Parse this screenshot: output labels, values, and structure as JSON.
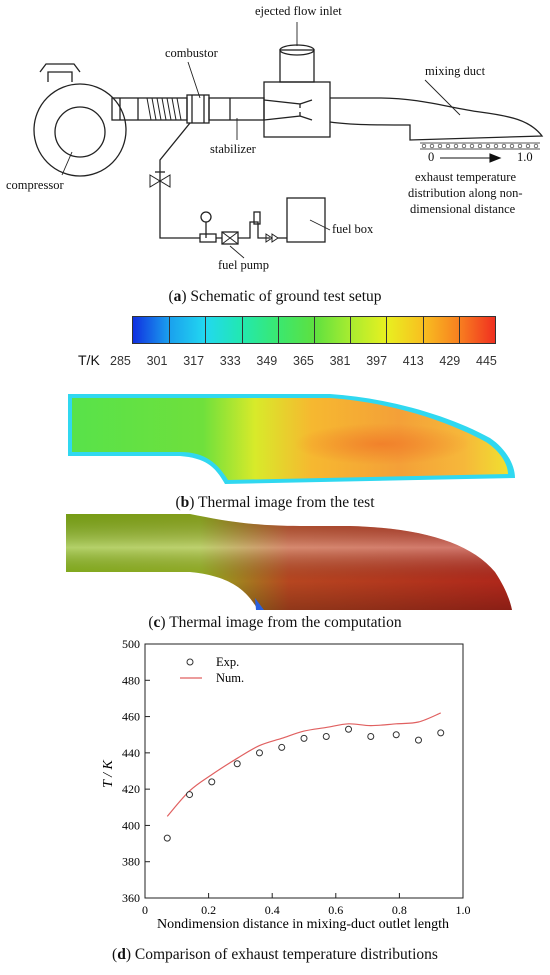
{
  "panel_a": {
    "labels": {
      "ejected_flow_inlet": "ejected flow inlet",
      "combustor": "combustor",
      "mixing_duct": "mixing duct",
      "compressor": "compressor",
      "stabilizer": "stabilizer",
      "fuel_box": "fuel box",
      "fuel_pump": "fuel pump",
      "scale_start": "0",
      "scale_end": "1.0",
      "exhaust_line1": "exhaust temperature",
      "exhaust_line2": "distribution along non-",
      "exhaust_line3": "dimensional distance"
    },
    "caption_letter": "a",
    "caption_text": "Schematic of ground test setup"
  },
  "colorbar": {
    "unit": "T/K",
    "ticks": [
      "285",
      "301",
      "317",
      "333",
      "349",
      "365",
      "381",
      "397",
      "413",
      "429",
      "445"
    ],
    "colors": [
      "#1030e0",
      "#1aa0ee",
      "#22d8f0",
      "#22e8b0",
      "#3ae870",
      "#5de040",
      "#a8ec30",
      "#e8f020",
      "#f8c020",
      "#f88020",
      "#f03020"
    ]
  },
  "panel_b": {
    "caption_letter": "b",
    "caption_text": "Thermal image from the test"
  },
  "panel_c": {
    "caption_letter": "c",
    "caption_text": "Thermal image from the computation"
  },
  "panel_d": {
    "caption_letter": "d",
    "caption_text": "Comparison of exhaust temperature distributions"
  },
  "chart_data": {
    "type": "scatter",
    "xlabel": "Nondimension distance in mixing-duct outlet length",
    "ylabel": "T / K",
    "xlim": [
      0,
      1.0
    ],
    "ylim": [
      360,
      500
    ],
    "x_ticks": [
      "0",
      "0.2",
      "0.4",
      "0.6",
      "0.8",
      "1.0"
    ],
    "y_ticks": [
      "360",
      "380",
      "400",
      "420",
      "440",
      "460",
      "480",
      "500"
    ],
    "legend": "top-left",
    "grid": false,
    "series": [
      {
        "name": "Exp.",
        "marker": "circle",
        "x": [
          0.07,
          0.14,
          0.21,
          0.29,
          0.36,
          0.43,
          0.5,
          0.57,
          0.64,
          0.71,
          0.79,
          0.86,
          0.93
        ],
        "y": [
          393,
          417,
          424,
          434,
          440,
          443,
          448,
          449,
          453,
          449,
          450,
          447,
          451
        ]
      },
      {
        "name": "Num.",
        "marker": "line",
        "color": "#e06060",
        "x": [
          0.07,
          0.14,
          0.21,
          0.29,
          0.36,
          0.43,
          0.5,
          0.57,
          0.64,
          0.71,
          0.79,
          0.86,
          0.93
        ],
        "y": [
          405,
          419,
          428,
          437,
          444,
          448,
          452,
          454,
          456,
          455,
          456,
          457,
          462
        ]
      }
    ]
  }
}
